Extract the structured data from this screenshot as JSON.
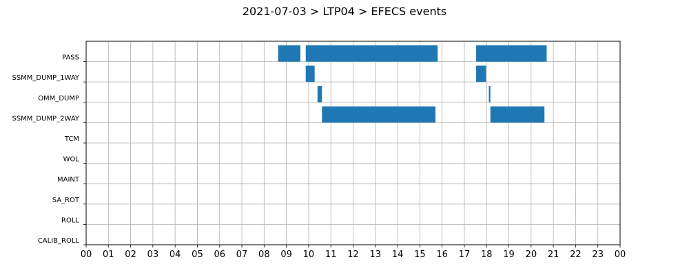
{
  "chart_data": {
    "type": "gantt",
    "title": "2021-07-03 > LTP04 > EFECS events",
    "xlabel": "",
    "ylabel": "",
    "xlim": [
      0,
      24
    ],
    "x_tick_labels": [
      "00",
      "01",
      "02",
      "03",
      "04",
      "05",
      "06",
      "07",
      "08",
      "09",
      "10",
      "11",
      "12",
      "13",
      "14",
      "15",
      "16",
      "17",
      "18",
      "19",
      "20",
      "21",
      "22",
      "23",
      "00"
    ],
    "categories": [
      "PASS",
      "SSMM_DUMP_1WAY",
      "OMM_DUMP",
      "SSMM_DUMP_2WAY",
      "TCM",
      "WOL",
      "MAINT",
      "SA_ROT",
      "ROLL",
      "CALIB_ROLL"
    ],
    "grid": true,
    "bar_color": "#1f77b4",
    "events": [
      {
        "category": "PASS",
        "start": 8.63,
        "end": 9.63
      },
      {
        "category": "PASS",
        "start": 9.87,
        "end": 15.8
      },
      {
        "category": "PASS",
        "start": 17.53,
        "end": 20.7
      },
      {
        "category": "SSMM_DUMP_1WAY",
        "start": 9.87,
        "end": 10.27
      },
      {
        "category": "SSMM_DUMP_1WAY",
        "start": 17.53,
        "end": 17.97
      },
      {
        "category": "OMM_DUMP",
        "start": 10.4,
        "end": 10.6
      },
      {
        "category": "OMM_DUMP",
        "start": 18.1,
        "end": 18.17
      },
      {
        "category": "SSMM_DUMP_2WAY",
        "start": 10.6,
        "end": 15.7
      },
      {
        "category": "SSMM_DUMP_2WAY",
        "start": 18.17,
        "end": 20.6
      }
    ]
  }
}
